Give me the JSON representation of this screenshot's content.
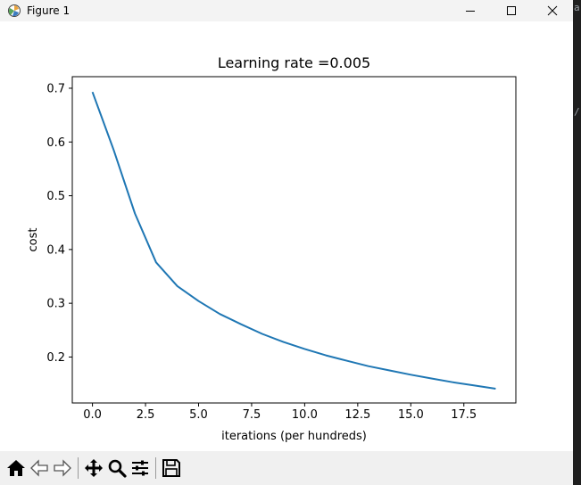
{
  "window": {
    "title": "Figure 1"
  },
  "toolbar": {
    "buttons": [
      {
        "icon": "home-icon"
      },
      {
        "icon": "back-arrow-icon"
      },
      {
        "icon": "forward-arrow-icon"
      },
      {
        "icon": "pan-move-icon"
      },
      {
        "icon": "zoom-magnifier-icon"
      },
      {
        "icon": "configure-subplots-icon"
      },
      {
        "icon": "save-floppy-icon"
      }
    ]
  },
  "side_glyphs": [
    "a",
    "/"
  ],
  "chart_data": {
    "type": "line",
    "title": "Learning rate =0.005",
    "xlabel": "iterations (per hundreds)",
    "ylabel": "cost",
    "xlim": [
      -0.95,
      19.95
    ],
    "ylim": [
      0.1145,
      0.7215
    ],
    "xticks": [
      "0.0",
      "2.5",
      "5.0",
      "7.5",
      "10.0",
      "12.5",
      "15.0",
      "17.5"
    ],
    "xtick_values": [
      0,
      2.5,
      5,
      7.5,
      10,
      12.5,
      15,
      17.5
    ],
    "yticks": [
      "0.2",
      "0.3",
      "0.4",
      "0.5",
      "0.6",
      "0.7"
    ],
    "ytick_values": [
      0.2,
      0.3,
      0.4,
      0.5,
      0.6,
      0.7
    ],
    "grid": false,
    "line_color": "#1f77b4",
    "series": [
      {
        "x": [
          0,
          1,
          2,
          3,
          4,
          5,
          6,
          7,
          8,
          9,
          10,
          11,
          12,
          13,
          14,
          15,
          16,
          17,
          18,
          19
        ],
        "values": [
          0.693,
          0.585,
          0.467,
          0.376,
          0.332,
          0.304,
          0.28,
          0.261,
          0.243,
          0.228,
          0.215,
          0.203,
          0.193,
          0.183,
          0.175,
          0.167,
          0.16,
          0.153,
          0.147,
          0.141
        ]
      }
    ]
  }
}
